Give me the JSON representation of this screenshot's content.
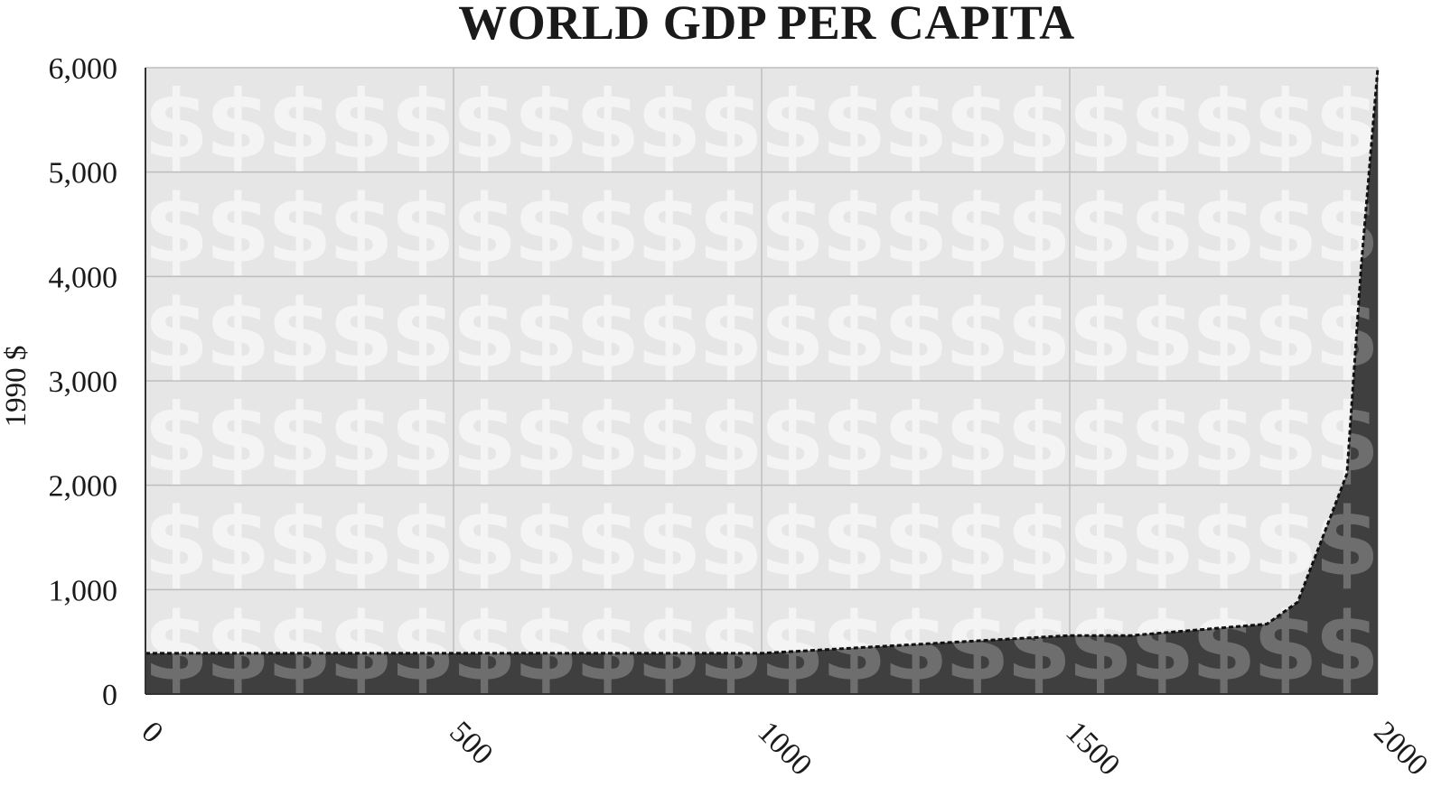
{
  "chart_data": {
    "type": "area",
    "title": "WORLD GDP PER CAPITA",
    "xlabel": "",
    "ylabel": "1990 $",
    "xlim": [
      0,
      2000
    ],
    "ylim": [
      0,
      6000
    ],
    "x_ticks": [
      "0",
      "500",
      "1000",
      "1500",
      "2000"
    ],
    "y_ticks": [
      "0",
      "1,000",
      "2,000",
      "3,000",
      "4,000",
      "5,000",
      "6,000"
    ],
    "grid": true,
    "background_pattern_glyph": "$",
    "colors": {
      "plot_bg": "#e6e6e6",
      "grid": "#bdbdbd",
      "area_fill": "#3f3f3f",
      "glyph_light": "#f4f4f4",
      "glyph_dark": "#6e6e6e"
    },
    "series": [
      {
        "x": [
          0,
          1000,
          1500,
          1600,
          1700,
          1820,
          1870,
          1913,
          1950,
          1973,
          2000
        ],
        "values": [
          390,
          390,
          560,
          560,
          610,
          670,
          880,
          1540,
          2110,
          4090,
          6000
        ]
      }
    ]
  }
}
